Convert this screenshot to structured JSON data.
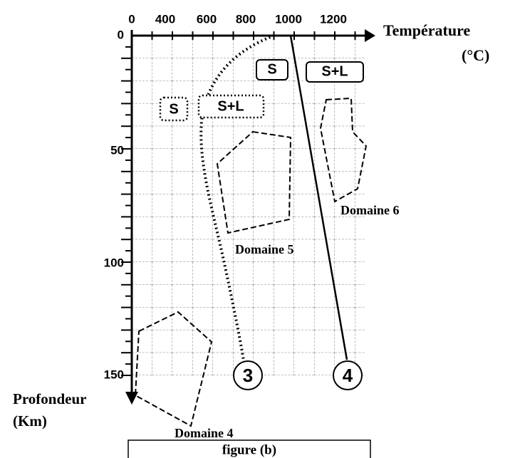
{
  "axis": {
    "x_title": "Température",
    "x_unit": "(°C)",
    "y_title": "Profondeur",
    "y_unit": "(Km)",
    "x_ticks": [
      0,
      400,
      600,
      800,
      1000,
      1200
    ],
    "y_ticks": [
      0,
      50,
      100,
      150
    ]
  },
  "labels": [
    "S",
    "S+L",
    "S",
    "S+L"
  ],
  "domains": [
    "Domaine 4",
    "Domaine 5",
    "Domaine 6"
  ],
  "curves": [
    "3",
    "4"
  ],
  "caption": "figure (b)"
}
